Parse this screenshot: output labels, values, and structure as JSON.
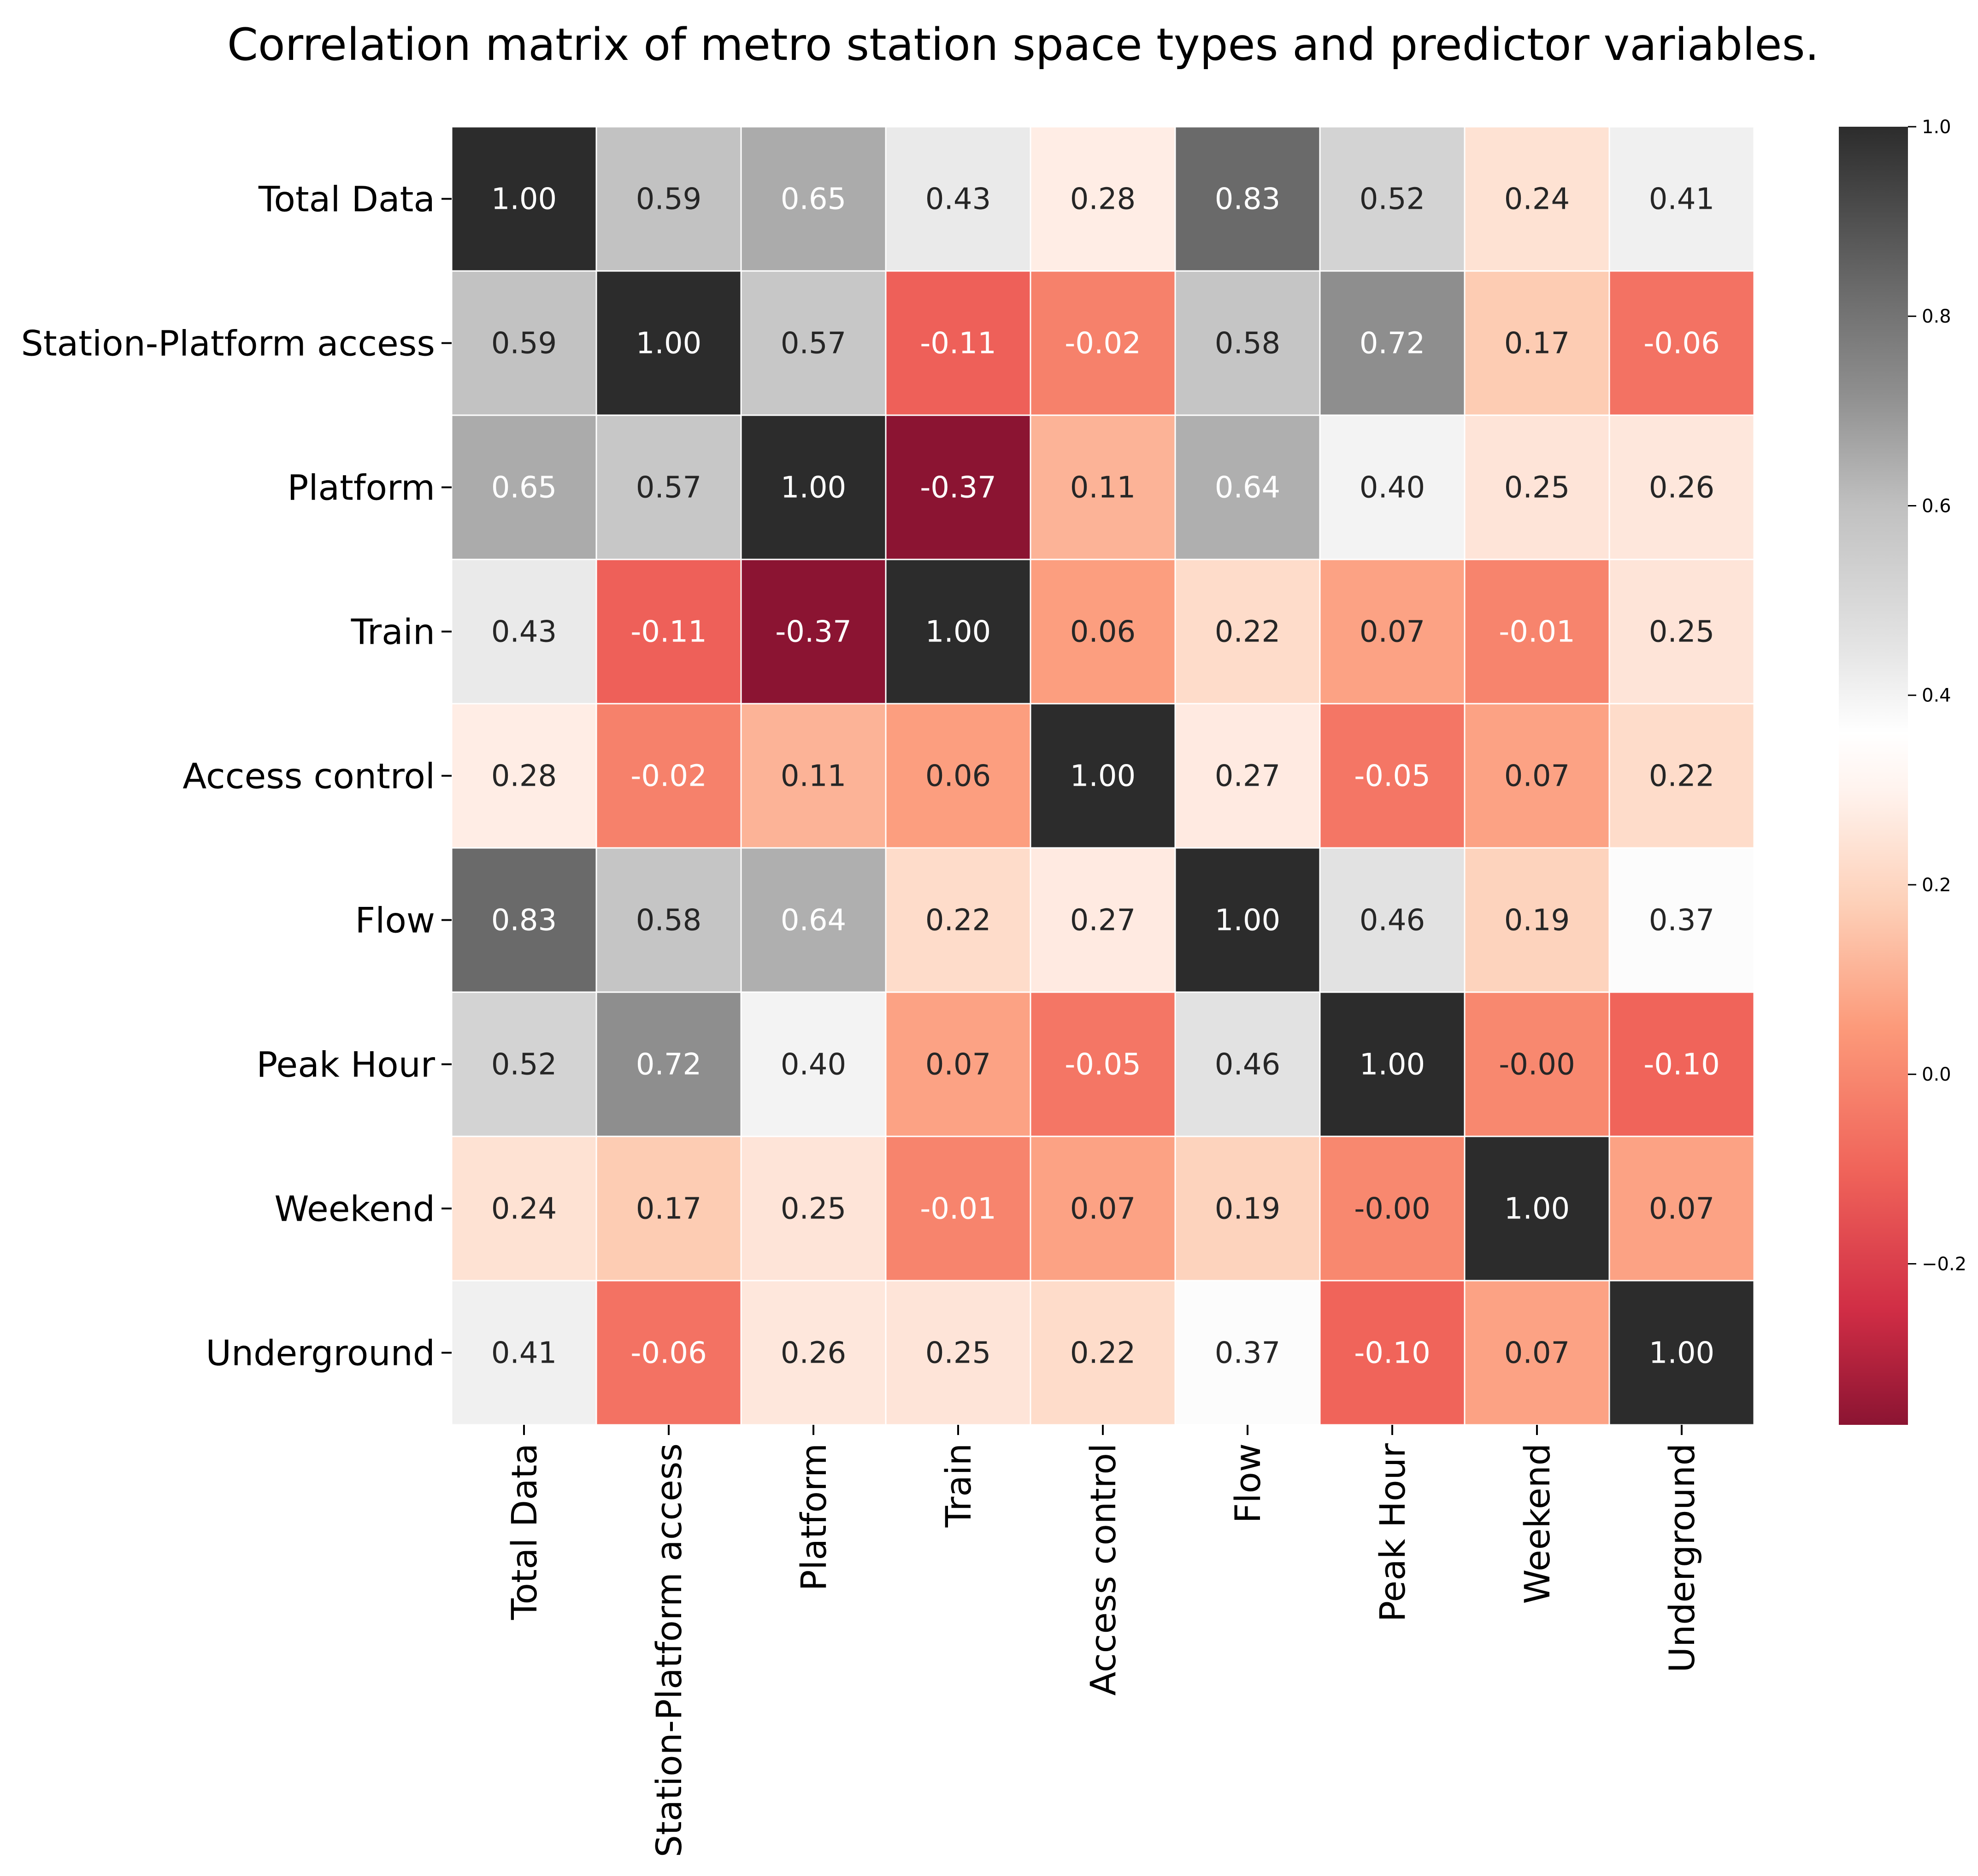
{
  "chart_data": {
    "type": "heatmap",
    "title": "Correlation matrix of metro station space types and predictor variables.",
    "labels": [
      "Total Data",
      "Station-Platform access",
      "Platform",
      "Train",
      "Access control",
      "Flow",
      "Peak Hour",
      "Weekend",
      "Underground"
    ],
    "values": [
      [
        1.0,
        0.59,
        0.65,
        0.43,
        0.28,
        0.83,
        0.52,
        0.24,
        0.41
      ],
      [
        0.59,
        1.0,
        0.57,
        -0.11,
        -0.02,
        0.58,
        0.72,
        0.17,
        -0.06
      ],
      [
        0.65,
        0.57,
        1.0,
        -0.37,
        0.11,
        0.64,
        0.4,
        0.25,
        0.26
      ],
      [
        0.43,
        -0.11,
        -0.37,
        1.0,
        0.06,
        0.22,
        0.07,
        -0.01,
        0.25
      ],
      [
        0.28,
        -0.02,
        0.11,
        0.06,
        1.0,
        0.27,
        -0.05,
        0.07,
        0.22
      ],
      [
        0.83,
        0.58,
        0.64,
        0.22,
        0.27,
        1.0,
        0.46,
        0.19,
        0.37
      ],
      [
        0.52,
        0.72,
        0.4,
        0.07,
        -0.05,
        0.46,
        1.0,
        -0.0,
        -0.1
      ],
      [
        0.24,
        0.17,
        0.25,
        -0.01,
        0.07,
        0.19,
        -0.0,
        1.0,
        0.07
      ],
      [
        0.41,
        -0.06,
        0.26,
        0.25,
        0.22,
        0.37,
        -0.1,
        0.07,
        1.0
      ]
    ],
    "value_format": "2 decimals",
    "colorbar": {
      "min": -0.37,
      "max": 1.0,
      "ticks": [
        "−0.2",
        "0.0",
        "0.2",
        "0.4",
        "0.6",
        "0.8",
        "1.0"
      ],
      "tick_values": [
        -0.2,
        0.0,
        0.2,
        0.4,
        0.6,
        0.8,
        1.0
      ]
    },
    "colormap_stops": [
      {
        "v": -0.37,
        "color": "#8b1432"
      },
      {
        "v": -0.25,
        "color": "#d02d45"
      },
      {
        "v": -0.1,
        "color": "#f0645a"
      },
      {
        "v": 0.05,
        "color": "#fc9a7a"
      },
      {
        "v": 0.18,
        "color": "#fdd0b8"
      },
      {
        "v": 0.3,
        "color": "#fff3ee"
      },
      {
        "v": 0.36,
        "color": "#ffffff"
      },
      {
        "v": 0.45,
        "color": "#e4e4e4"
      },
      {
        "v": 0.6,
        "color": "#c0c0c0"
      },
      {
        "v": 0.72,
        "color": "#8e8e8e"
      },
      {
        "v": 0.83,
        "color": "#6a6a6a"
      },
      {
        "v": 1.0,
        "color": "#2c2c2c"
      }
    ]
  }
}
